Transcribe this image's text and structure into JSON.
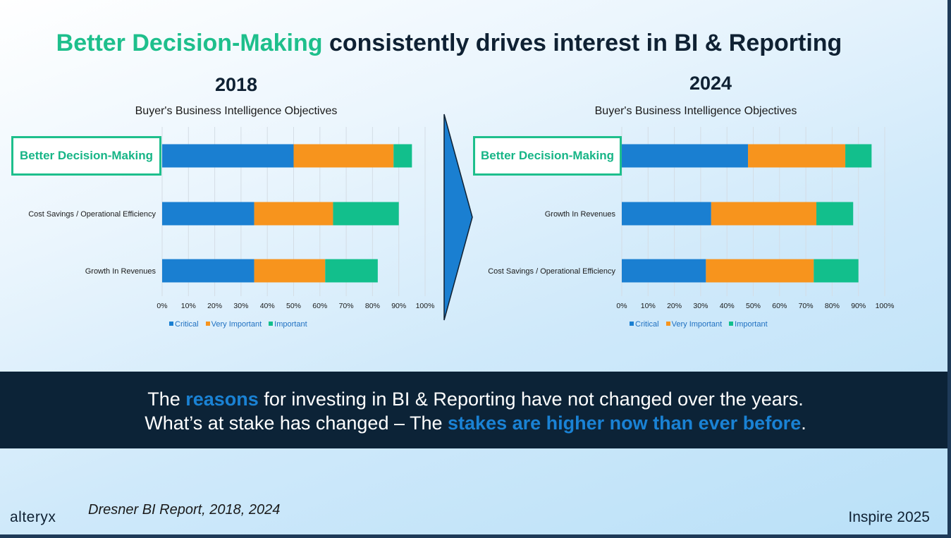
{
  "slide": {
    "title_highlight": "Better Decision-Making",
    "title_rest": " consistently drives interest in BI & Reporting",
    "banner": {
      "line1_pre": "The ",
      "line1_hl": "reasons",
      "line1_post": " for investing in BI & Reporting have not changed over the years.",
      "line2_pre": "What’s at stake has changed – The ",
      "line2_hl": "stakes are higher now than ever before",
      "line2_post": "."
    },
    "source": "Dresner BI Report, 2018, 2024",
    "logo": "alteryx",
    "event": "Inspire 2025"
  },
  "colors": {
    "critical": "#1a7fd1",
    "very_important": "#f7941d",
    "important": "#12bf8c",
    "accent_green": "#1ebf8c",
    "banner_bg": "#0c2337",
    "arrow": "#1a7fd1"
  },
  "chart_data": [
    {
      "type": "bar",
      "orientation": "horizontal",
      "stacked": true,
      "year": "2018",
      "title": "Buyer's Business Intelligence Objectives",
      "categories": [
        "Better Decision-Making",
        "Cost Savings / Operational Efficiency",
        "Growth In Revenues"
      ],
      "series": [
        {
          "name": "Critical",
          "values": [
            50,
            35,
            35
          ]
        },
        {
          "name": "Very Important",
          "values": [
            38,
            30,
            27
          ]
        },
        {
          "name": "Important",
          "values": [
            7,
            25,
            20
          ]
        }
      ],
      "xlim": [
        0,
        100
      ],
      "ticks": [
        "0%",
        "10%",
        "20%",
        "30%",
        "40%",
        "50%",
        "60%",
        "70%",
        "80%",
        "90%",
        "100%"
      ],
      "grid": true,
      "legend": "bottom"
    },
    {
      "type": "bar",
      "orientation": "horizontal",
      "stacked": true,
      "year": "2024",
      "title": "Buyer's Business Intelligence Objectives",
      "categories": [
        "Better Decision-Making",
        "Growth In Revenues",
        "Cost Savings / Operational Efficiency"
      ],
      "series": [
        {
          "name": "Critical",
          "values": [
            48,
            34,
            32
          ]
        },
        {
          "name": "Very Important",
          "values": [
            37,
            40,
            41
          ]
        },
        {
          "name": "Important",
          "values": [
            10,
            14,
            17
          ]
        }
      ],
      "xlim": [
        0,
        100
      ],
      "ticks": [
        "0%",
        "10%",
        "20%",
        "30%",
        "40%",
        "50%",
        "60%",
        "70%",
        "80%",
        "90%",
        "100%"
      ],
      "grid": true,
      "legend": "bottom"
    }
  ]
}
